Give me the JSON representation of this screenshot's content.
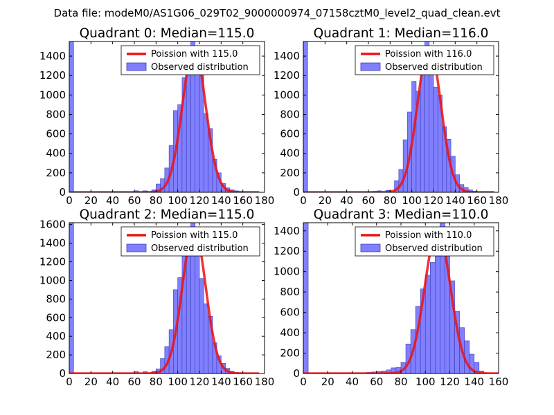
{
  "figure": {
    "suptitle": "Data file: modeM0/AS1G06_029T02_9000000974_07158cztM0_level2_quad_clean.evt"
  },
  "colors": {
    "bar_fill": "#8080ff",
    "bar_edge": "#3a3ab8",
    "poisson_line": "#ee1111"
  },
  "chart_data": [
    {
      "type": "bar",
      "title": "Quadrant 0: Median=115.0",
      "xlim": [
        0,
        180
      ],
      "ylim": [
        0,
        1550
      ],
      "xticks": [
        0,
        20,
        40,
        60,
        80,
        100,
        120,
        140,
        160,
        180
      ],
      "yticks": [
        0,
        200,
        400,
        600,
        800,
        1000,
        1200,
        1400
      ],
      "bin_width": 4,
      "bins_start": [
        0,
        60,
        68,
        76,
        80,
        84,
        88,
        92,
        96,
        100,
        104,
        108,
        112,
        116,
        120,
        124,
        128,
        132,
        136,
        140,
        144,
        148,
        152,
        156
      ],
      "values": [
        1550,
        15,
        15,
        25,
        85,
        140,
        250,
        480,
        840,
        900,
        1180,
        1430,
        1550,
        1380,
        1240,
        810,
        655,
        340,
        200,
        90,
        45,
        25,
        15,
        5
      ],
      "median": 115.0,
      "series": [
        {
          "name": "Poission with 115.0",
          "kind": "line",
          "mu": 115.0,
          "peak": 1480,
          "sigma": 10.72
        },
        {
          "name": "Observed distribution",
          "kind": "bar"
        }
      ],
      "legend": [
        "Poission with 115.0",
        "Observed distribution"
      ],
      "legend_loc": "upper right"
    },
    {
      "type": "bar",
      "title": "Quadrant 1: Median=116.0",
      "xlim": [
        0,
        180
      ],
      "ylim": [
        0,
        1550
      ],
      "xticks": [
        0,
        20,
        40,
        60,
        80,
        100,
        120,
        140,
        160,
        180
      ],
      "yticks": [
        0,
        200,
        400,
        600,
        800,
        1000,
        1200,
        1400
      ],
      "bin_width": 4,
      "bins_start": [
        0,
        64,
        68,
        76,
        84,
        88,
        92,
        96,
        100,
        104,
        108,
        112,
        116,
        120,
        124,
        128,
        132,
        136,
        140,
        144,
        148,
        152,
        156
      ],
      "values": [
        1550,
        10,
        15,
        20,
        120,
        235,
        540,
        825,
        1140,
        1040,
        1330,
        1550,
        1240,
        1080,
        1000,
        675,
        545,
        370,
        180,
        80,
        50,
        25,
        10
      ],
      "median": 116.0,
      "series": [
        {
          "name": "Poission with 116.0",
          "kind": "line",
          "mu": 116.0,
          "peak": 1500,
          "sigma": 10.77
        },
        {
          "name": "Observed distribution",
          "kind": "bar"
        }
      ],
      "legend": [
        "Poission with 116.0",
        "Observed distribution"
      ],
      "legend_loc": "upper right"
    },
    {
      "type": "bar",
      "title": "Quadrant 2: Median=115.0",
      "xlim": [
        0,
        180
      ],
      "ylim": [
        0,
        1620
      ],
      "xticks": [
        0,
        20,
        40,
        60,
        80,
        100,
        120,
        140,
        160,
        180
      ],
      "yticks": [
        0,
        200,
        400,
        600,
        800,
        1000,
        1200,
        1400,
        1600
      ],
      "bin_width": 4,
      "bins_start": [
        0,
        60,
        68,
        76,
        80,
        84,
        88,
        92,
        96,
        100,
        104,
        108,
        112,
        116,
        120,
        124,
        128,
        132,
        136,
        140,
        144,
        148,
        152,
        156
      ],
      "values": [
        1620,
        20,
        20,
        25,
        50,
        160,
        290,
        470,
        900,
        1030,
        1330,
        1510,
        1620,
        1380,
        1020,
        750,
        615,
        330,
        190,
        110,
        55,
        25,
        10,
        5
      ],
      "median": 115.0,
      "series": [
        {
          "name": "Poission with 115.0",
          "kind": "line",
          "mu": 115.0,
          "peak": 1550,
          "sigma": 10.72
        },
        {
          "name": "Observed distribution",
          "kind": "bar"
        }
      ],
      "legend": [
        "Poission with 115.0",
        "Observed distribution"
      ],
      "legend_loc": "upper right"
    },
    {
      "type": "bar",
      "title": "Quadrant 3: Median=110.0",
      "xlim": [
        0,
        160
      ],
      "ylim": [
        0,
        1480
      ],
      "xticks": [
        0,
        20,
        40,
        60,
        80,
        100,
        120,
        140,
        160
      ],
      "yticks": [
        0,
        200,
        400,
        600,
        800,
        1000,
        1200,
        1400
      ],
      "bin_width": 4,
      "bins_start": [
        0,
        52,
        56,
        60,
        64,
        68,
        72,
        76,
        80,
        84,
        88,
        92,
        96,
        100,
        104,
        108,
        112,
        116,
        120,
        124,
        128,
        132,
        136,
        140,
        144
      ],
      "values": [
        1480,
        10,
        15,
        20,
        25,
        35,
        55,
        60,
        110,
        290,
        430,
        660,
        830,
        965,
        1090,
        1380,
        1480,
        1270,
        910,
        610,
        450,
        320,
        190,
        110,
        25
      ],
      "median": 110.0,
      "series": [
        {
          "name": "Poission with 110.0",
          "kind": "line",
          "mu": 110.0,
          "peak": 1410,
          "sigma": 10.49
        },
        {
          "name": "Observed distribution",
          "kind": "bar"
        }
      ],
      "legend": [
        "Poission with 110.0",
        "Observed distribution"
      ],
      "legend_loc": "upper right"
    }
  ]
}
